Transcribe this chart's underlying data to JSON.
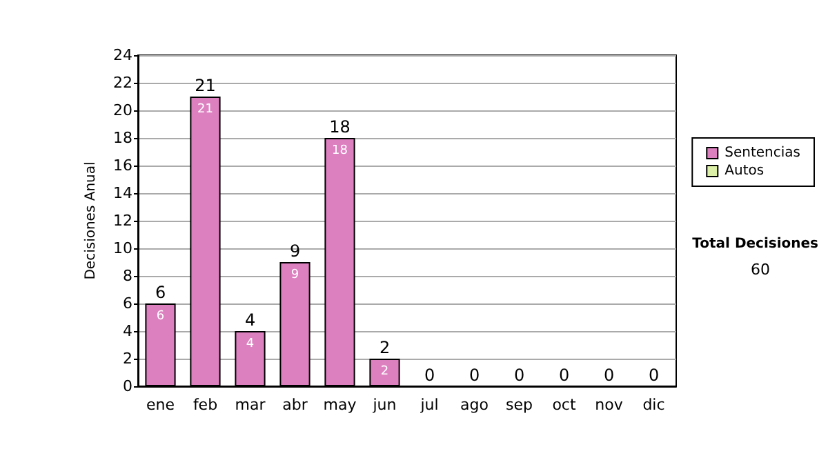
{
  "chart_data": {
    "type": "bar",
    "stacked": true,
    "ylabel": "Decisiones Anual",
    "categories": [
      "ene",
      "feb",
      "mar",
      "abr",
      "may",
      "jun",
      "jul",
      "ago",
      "sep",
      "oct",
      "nov",
      "dic"
    ],
    "series": [
      {
        "name": "Sentencias",
        "color": "#dd80c0",
        "values": [
          6,
          21,
          4,
          9,
          18,
          2,
          0,
          0,
          0,
          0,
          0,
          0
        ],
        "value_labels": [
          "6",
          "21",
          "4",
          "9",
          "18",
          "2",
          null,
          null,
          null,
          null,
          null,
          null
        ]
      },
      {
        "name": "Autos",
        "color": "#ddf0a8",
        "values": [
          0,
          0,
          0,
          0,
          0,
          0,
          0,
          0,
          0,
          0,
          0,
          0
        ]
      }
    ],
    "totals": [
      "6",
      "21",
      "4",
      "9",
      "18",
      "2",
      "0",
      "0",
      "0",
      "0",
      "0",
      "0"
    ],
    "ylim": [
      0,
      24
    ],
    "yticks": [
      0,
      2,
      4,
      6,
      8,
      10,
      12,
      14,
      16,
      18,
      20,
      22,
      24
    ],
    "grid": "y",
    "legend": "right",
    "annotations": [
      "Total Decisiones",
      "60"
    ]
  }
}
